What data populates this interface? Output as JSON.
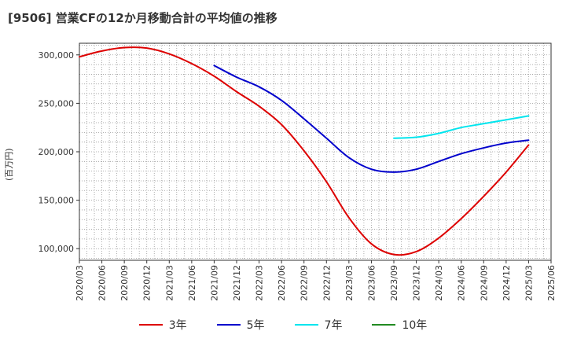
{
  "chart_data": {
    "type": "line",
    "title": "[9506]  営業CFの12か月移動合計の平均値の推移",
    "ylabel": "(百万円)",
    "ylim": [
      88000,
      312000
    ],
    "yticks": [
      100000,
      150000,
      200000,
      250000,
      300000
    ],
    "ytick_labels": [
      "100,000",
      "150,000",
      "200,000",
      "250,000",
      "300,000"
    ],
    "xticks": [
      "2020/03",
      "2020/06",
      "2020/09",
      "2020/12",
      "2021/03",
      "2021/06",
      "2021/09",
      "2021/12",
      "2022/03",
      "2022/06",
      "2022/09",
      "2022/12",
      "2023/03",
      "2023/06",
      "2023/09",
      "2023/12",
      "2024/03",
      "2024/06",
      "2024/09",
      "2024/12",
      "2025/03",
      "2025/06"
    ],
    "grid": true,
    "legend": "bottom",
    "series": [
      {
        "name": "3年",
        "color": "#dd0000",
        "points": [
          [
            "2020/03",
            298000
          ],
          [
            "2020/06",
            304000
          ],
          [
            "2020/09",
            307500
          ],
          [
            "2020/12",
            307000
          ],
          [
            "2021/03",
            301000
          ],
          [
            "2021/06",
            291000
          ],
          [
            "2021/09",
            278000
          ],
          [
            "2021/12",
            262000
          ],
          [
            "2022/03",
            247000
          ],
          [
            "2022/06",
            228000
          ],
          [
            "2022/09",
            201000
          ],
          [
            "2022/12",
            169000
          ],
          [
            "2023/03",
            132000
          ],
          [
            "2023/06",
            105000
          ],
          [
            "2023/09",
            94000
          ],
          [
            "2023/12",
            97000
          ],
          [
            "2024/03",
            111000
          ],
          [
            "2024/06",
            131000
          ],
          [
            "2024/09",
            154000
          ],
          [
            "2024/12",
            179000
          ],
          [
            "2025/03",
            207000
          ]
        ]
      },
      {
        "name": "5年",
        "color": "#0000cc",
        "points": [
          [
            "2021/09",
            289000
          ],
          [
            "2021/12",
            277000
          ],
          [
            "2022/03",
            267000
          ],
          [
            "2022/06",
            253000
          ],
          [
            "2022/09",
            234000
          ],
          [
            "2022/12",
            214000
          ],
          [
            "2023/03",
            194000
          ],
          [
            "2023/06",
            182000
          ],
          [
            "2023/09",
            179000
          ],
          [
            "2023/12",
            182000
          ],
          [
            "2024/03",
            190000
          ],
          [
            "2024/06",
            198000
          ],
          [
            "2024/09",
            204000
          ],
          [
            "2024/12",
            209000
          ],
          [
            "2025/03",
            212000
          ]
        ]
      },
      {
        "name": "7年",
        "color": "#00e5ee",
        "points": [
          [
            "2023/09",
            214000
          ],
          [
            "2023/12",
            215000
          ],
          [
            "2024/03",
            219000
          ],
          [
            "2024/06",
            225000
          ],
          [
            "2024/09",
            229000
          ],
          [
            "2024/12",
            233000
          ],
          [
            "2025/03",
            237000
          ]
        ]
      },
      {
        "name": "10年",
        "color": "#228b22",
        "points": []
      }
    ]
  }
}
